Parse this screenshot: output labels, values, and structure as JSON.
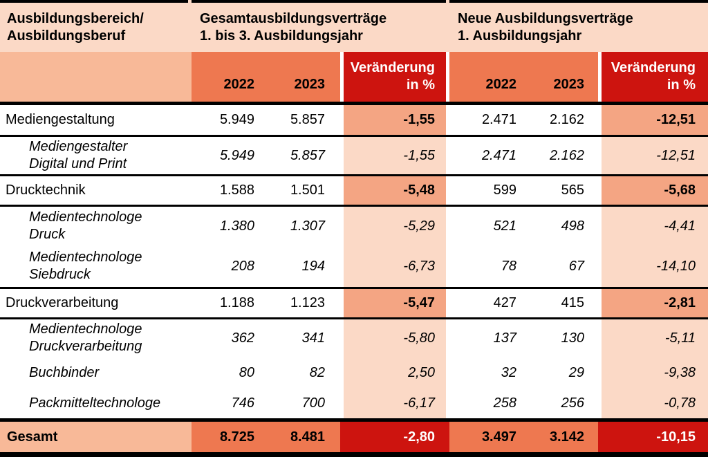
{
  "colors": {
    "pale_pink": "#fbd9c6",
    "light_salmon": "#f8b998",
    "orange_salmon": "#ee7850",
    "mid_salmon": "#f4a583",
    "red": "#cd140f",
    "line_black": "#000000",
    "text_white": "#ffffff"
  },
  "chart_data": {
    "type": "table",
    "header": {
      "col1": {
        "line1": "Ausbildungsbereich/",
        "line2": "Ausbildungsberuf"
      },
      "group1": {
        "line1": "Gesamtausbildungsverträge",
        "line2": "1. bis 3. Ausbildungsjahr"
      },
      "group2": {
        "line1": "Neue Ausbildungsverträge",
        "line2": "1. Ausbildungsjahr"
      },
      "year_2022": "2022",
      "year_2023": "2023",
      "change": {
        "line1": "Veränderung",
        "line2": "in %"
      }
    },
    "rows": [
      {
        "kind": "category",
        "label1": "Mediengestaltung",
        "label2": "",
        "total_2022": "5.949",
        "total_2023": "5.857",
        "total_change": "-1,55",
        "new_2022": "2.471",
        "new_2023": "2.162",
        "new_change": "-12,51"
      },
      {
        "kind": "sub",
        "label1": "Mediengestalter",
        "label2": "Digital und Print",
        "total_2022": "5.949",
        "total_2023": "5.857",
        "total_change": "-1,55",
        "new_2022": "2.471",
        "new_2023": "2.162",
        "new_change": "-12,51"
      },
      {
        "kind": "category",
        "label1": "Drucktechnik",
        "label2": "",
        "total_2022": "1.588",
        "total_2023": "1.501",
        "total_change": "-5,48",
        "new_2022": "599",
        "new_2023": "565",
        "new_change": "-5,68"
      },
      {
        "kind": "sub",
        "label1": "Medientechnologe",
        "label2": "Druck",
        "total_2022": "1.380",
        "total_2023": "1.307",
        "total_change": "-5,29",
        "new_2022": "521",
        "new_2023": "498",
        "new_change": "-4,41"
      },
      {
        "kind": "sub",
        "label1": "Medientechnologe",
        "label2": "Siebdruck",
        "total_2022": "208",
        "total_2023": "194",
        "total_change": "-6,73",
        "new_2022": "78",
        "new_2023": "67",
        "new_change": "-14,10"
      },
      {
        "kind": "category",
        "label1": "Druckverarbeitung",
        "label2": "",
        "total_2022": "1.188",
        "total_2023": "1.123",
        "total_change": "-5,47",
        "new_2022": "427",
        "new_2023": "415",
        "new_change": "-2,81"
      },
      {
        "kind": "sub",
        "label1": "Medientechnologe",
        "label2": "Druckverarbeitung",
        "total_2022": "362",
        "total_2023": "341",
        "total_change": "-5,80",
        "new_2022": "137",
        "new_2023": "130",
        "new_change": "-5,11"
      },
      {
        "kind": "sub",
        "label1": "Buchbinder",
        "label2": "",
        "total_2022": "80",
        "total_2023": "82",
        "total_change": "2,50",
        "new_2022": "32",
        "new_2023": "29",
        "new_change": "-9,38"
      },
      {
        "kind": "sub",
        "label1": "Packmitteltechnologe",
        "label2": "",
        "total_2022": "746",
        "total_2023": "700",
        "total_change": "-6,17",
        "new_2022": "258",
        "new_2023": "256",
        "new_change": "-0,78"
      }
    ],
    "total_row": {
      "label": "Gesamt",
      "total_2022": "8.725",
      "total_2023": "8.481",
      "total_change": "-2,80",
      "new_2022": "3.497",
      "new_2023": "3.142",
      "new_change": "-10,15"
    }
  }
}
